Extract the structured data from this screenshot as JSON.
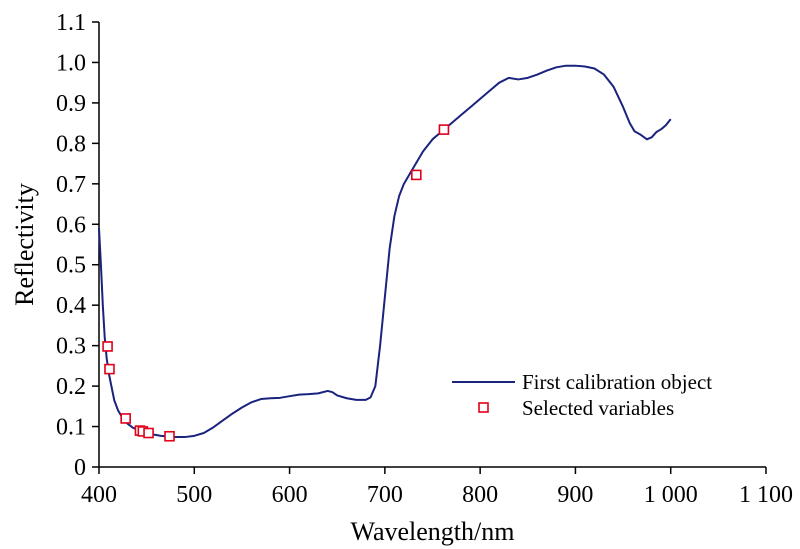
{
  "chart_data": {
    "type": "line",
    "xlabel": "Wavelength/nm",
    "ylabel": "Reflectivity",
    "xlim": [
      400,
      1100
    ],
    "ylim": [
      0,
      1.1
    ],
    "x_ticks": [
      400,
      500,
      600,
      700,
      800,
      900,
      1000,
      1100
    ],
    "x_tick_labels": [
      "400",
      "500",
      "600",
      "700",
      "800",
      "900",
      "1 000",
      "1 100"
    ],
    "y_ticks": [
      0,
      0.1,
      0.2,
      0.3,
      0.4,
      0.5,
      0.6,
      0.7,
      0.8,
      0.9,
      1.0,
      1.1
    ],
    "y_tick_labels": [
      "0",
      "0.1",
      "0.2",
      "0.3",
      "0.4",
      "0.5",
      "0.6",
      "0.7",
      "0.8",
      "0.9",
      "1.0",
      "1.1"
    ],
    "grid": false,
    "legend_position": "bottom-right",
    "colors": {
      "line": "#1a237e",
      "marker": "#e0001b"
    },
    "series": [
      {
        "name": "First calibration object",
        "kind": "line",
        "points": [
          [
            400,
            0.59
          ],
          [
            402,
            0.5
          ],
          [
            404,
            0.4
          ],
          [
            406,
            0.32
          ],
          [
            408,
            0.27
          ],
          [
            410,
            0.235
          ],
          [
            413,
            0.2
          ],
          [
            416,
            0.165
          ],
          [
            420,
            0.14
          ],
          [
            425,
            0.12
          ],
          [
            430,
            0.107
          ],
          [
            435,
            0.098
          ],
          [
            440,
            0.092
          ],
          [
            445,
            0.088
          ],
          [
            450,
            0.084
          ],
          [
            455,
            0.081
          ],
          [
            460,
            0.079
          ],
          [
            465,
            0.077
          ],
          [
            470,
            0.076
          ],
          [
            475,
            0.075
          ],
          [
            480,
            0.074
          ],
          [
            490,
            0.074
          ],
          [
            500,
            0.077
          ],
          [
            510,
            0.084
          ],
          [
            520,
            0.098
          ],
          [
            530,
            0.115
          ],
          [
            540,
            0.132
          ],
          [
            550,
            0.147
          ],
          [
            560,
            0.16
          ],
          [
            570,
            0.168
          ],
          [
            580,
            0.17
          ],
          [
            590,
            0.171
          ],
          [
            600,
            0.175
          ],
          [
            610,
            0.179
          ],
          [
            620,
            0.18
          ],
          [
            630,
            0.182
          ],
          [
            640,
            0.188
          ],
          [
            645,
            0.185
          ],
          [
            650,
            0.177
          ],
          [
            660,
            0.17
          ],
          [
            670,
            0.166
          ],
          [
            680,
            0.166
          ],
          [
            685,
            0.172
          ],
          [
            690,
            0.2
          ],
          [
            695,
            0.3
          ],
          [
            700,
            0.42
          ],
          [
            705,
            0.54
          ],
          [
            710,
            0.62
          ],
          [
            715,
            0.67
          ],
          [
            720,
            0.7
          ],
          [
            730,
            0.74
          ],
          [
            740,
            0.78
          ],
          [
            750,
            0.81
          ],
          [
            760,
            0.83
          ],
          [
            770,
            0.85
          ],
          [
            780,
            0.87
          ],
          [
            790,
            0.89
          ],
          [
            800,
            0.91
          ],
          [
            810,
            0.93
          ],
          [
            820,
            0.95
          ],
          [
            830,
            0.962
          ],
          [
            840,
            0.958
          ],
          [
            850,
            0.962
          ],
          [
            860,
            0.97
          ],
          [
            870,
            0.98
          ],
          [
            880,
            0.988
          ],
          [
            890,
            0.992
          ],
          [
            900,
            0.992
          ],
          [
            910,
            0.99
          ],
          [
            920,
            0.985
          ],
          [
            930,
            0.97
          ],
          [
            940,
            0.94
          ],
          [
            950,
            0.89
          ],
          [
            957,
            0.85
          ],
          [
            962,
            0.83
          ],
          [
            968,
            0.822
          ],
          [
            975,
            0.81
          ],
          [
            980,
            0.815
          ],
          [
            985,
            0.828
          ],
          [
            990,
            0.835
          ],
          [
            995,
            0.845
          ],
          [
            1000,
            0.86
          ]
        ]
      },
      {
        "name": "Selected variables",
        "kind": "scatter",
        "points": [
          [
            409,
            0.298
          ],
          [
            411,
            0.242
          ],
          [
            428,
            0.12
          ],
          [
            443,
            0.09
          ],
          [
            446,
            0.088
          ],
          [
            452,
            0.084
          ],
          [
            474,
            0.076
          ],
          [
            733,
            0.722
          ],
          [
            762,
            0.834
          ]
        ]
      }
    ]
  }
}
